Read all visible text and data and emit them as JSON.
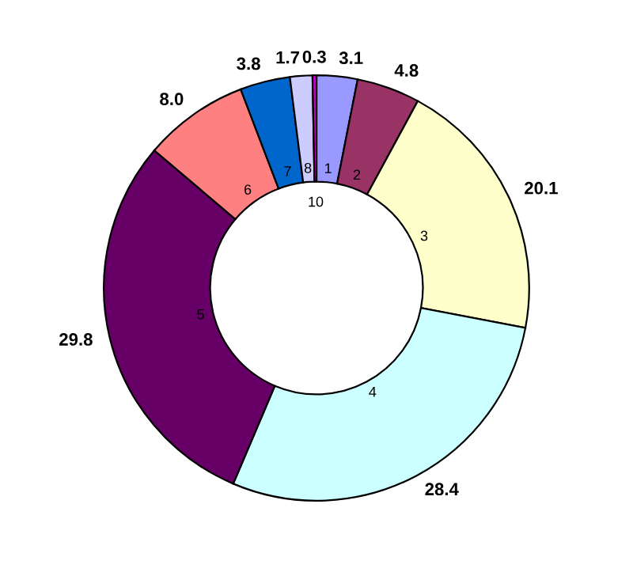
{
  "chart_data": {
    "type": "donut",
    "categories": [
      "1",
      "2",
      "3",
      "4",
      "5",
      "6",
      "7",
      "8",
      "10"
    ],
    "values": [
      3.1,
      4.8,
      20.1,
      28.4,
      29.8,
      8.0,
      3.8,
      1.7,
      0.3
    ],
    "value_labels": [
      "3.1",
      "4.8",
      "20.1",
      "28.4",
      "29.8",
      "8.0",
      "3.8",
      "1.7",
      "0.3"
    ],
    "colors": [
      "#9999ff",
      "#993366",
      "#ffffcc",
      "#ccffff",
      "#660066",
      "#ff8080",
      "#0066cc",
      "#ccccff",
      "#cc00cc"
    ]
  }
}
